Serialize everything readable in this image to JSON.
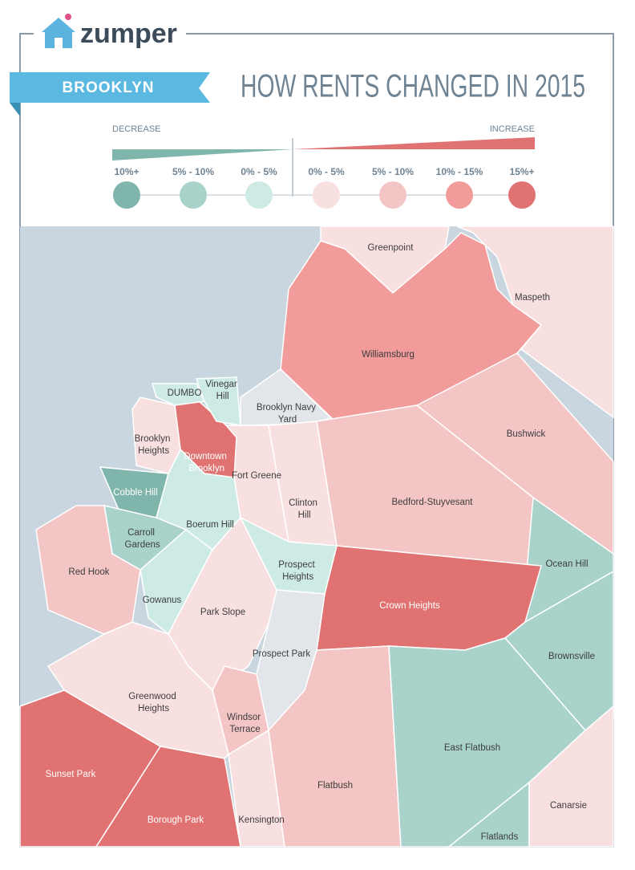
{
  "header": {
    "brand": "zumper",
    "banner": "BROOKLYN",
    "title": "HOW RENTS CHANGED IN 2015"
  },
  "legend": {
    "decrease": "DECREASE",
    "increase": "INCREASE",
    "items": [
      {
        "label": "10%+",
        "color": "#7fb5aa"
      },
      {
        "label": "5% - 10%",
        "color": "#a9d3ca"
      },
      {
        "label": "0% - 5%",
        "color": "#cdebe4"
      },
      {
        "label": "0% - 5%",
        "color": "#f9e0e0"
      },
      {
        "label": "5% - 10%",
        "color": "#f3c5c5"
      },
      {
        "label": "10% - 15%",
        "color": "#f29b9b"
      },
      {
        "label": "15%+",
        "color": "#e07272"
      }
    ]
  },
  "neighborhoods": [
    {
      "name": "Greenpoint",
      "color": "#f9e0e0"
    },
    {
      "name": "Maspeth",
      "color": "#f9e0e0"
    },
    {
      "name": "Williamsburg",
      "color": "#f29b9b"
    },
    {
      "name": "Brooklyn Navy Yard",
      "color": "#e2e6ea"
    },
    {
      "name": "Bushwick",
      "color": "#f3c5c5"
    },
    {
      "name": "Bedford-Stuyvesant",
      "color": "#f3c5c5"
    },
    {
      "name": "Ocean Hill",
      "color": "#a9d3ca"
    },
    {
      "name": "Brownsville",
      "color": "#a9d3ca"
    },
    {
      "name": "Crown Heights",
      "color": "#e07272"
    },
    {
      "name": "Clinton Hill",
      "color": "#f9e0e0"
    },
    {
      "name": "Fort Greene",
      "color": "#f9e0e0"
    },
    {
      "name": "Downtown Brooklyn",
      "color": "#e07272"
    },
    {
      "name": "Vinegar Hill",
      "color": "#cdebe4"
    },
    {
      "name": "DUMBO",
      "color": "#cdebe4"
    },
    {
      "name": "Brooklyn Heights",
      "color": "#f9e0e0"
    },
    {
      "name": "Cobble Hill",
      "color": "#7fb5aa"
    },
    {
      "name": "Boerum Hill",
      "color": "#cdebe4"
    },
    {
      "name": "Carroll Gardens",
      "color": "#a9d3ca"
    },
    {
      "name": "Gowanus",
      "color": "#cdebe4"
    },
    {
      "name": "Red Hook",
      "color": "#f3c5c5"
    },
    {
      "name": "Park Slope",
      "color": "#f9e0e0"
    },
    {
      "name": "Prospect Heights",
      "color": "#cdebe4"
    },
    {
      "name": "Prospect Park",
      "color": "#e2e6ea"
    },
    {
      "name": "Windsor Terrace",
      "color": "#f3c5c5"
    },
    {
      "name": "Greenwood Heights",
      "color": "#f9e0e0"
    },
    {
      "name": "Sunset Park",
      "color": "#e07272"
    },
    {
      "name": "Borough Park",
      "color": "#e07272"
    },
    {
      "name": "Kensington",
      "color": "#f9e0e0"
    },
    {
      "name": "Flatbush",
      "color": "#f3c5c5"
    },
    {
      "name": "East Flatbush",
      "color": "#a9d3ca"
    },
    {
      "name": "Flatlands",
      "color": "#a9d3ca"
    },
    {
      "name": "Canarsie",
      "color": "#f9e0e0"
    }
  ]
}
